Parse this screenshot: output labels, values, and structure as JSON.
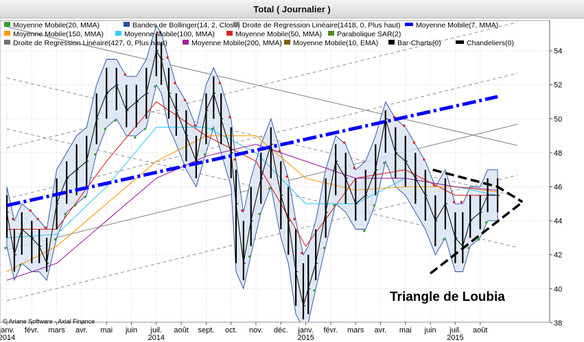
{
  "title": "Total  ( Journalier )",
  "copyright": "© Ariane Software - Axial Finance",
  "annotation": "Triangle de Loubia",
  "chart_data": {
    "type": "line",
    "title": "Total  ( Journalier )",
    "xlabel": "",
    "ylabel": "",
    "ylim": [
      37.9,
      55.8
    ],
    "y_ticks": [
      38,
      40,
      42,
      44,
      46,
      48,
      50,
      52,
      54
    ],
    "x_labels": [
      {
        "label": "janv.",
        "year": "2014",
        "m": 0
      },
      {
        "label": "févr.",
        "year": "",
        "m": 1
      },
      {
        "label": "mars",
        "year": "",
        "m": 2
      },
      {
        "label": "avr.",
        "year": "",
        "m": 3
      },
      {
        "label": "mai",
        "year": "",
        "m": 4
      },
      {
        "label": "juin",
        "year": "",
        "m": 5
      },
      {
        "label": "juil.",
        "year": "2014",
        "m": 6
      },
      {
        "label": "août",
        "year": "",
        "m": 7
      },
      {
        "label": "sept.",
        "year": "",
        "m": 8
      },
      {
        "label": "oct.",
        "year": "",
        "m": 9
      },
      {
        "label": "nov.",
        "year": "",
        "m": 10
      },
      {
        "label": "déc.",
        "year": "",
        "m": 11
      },
      {
        "label": "janv.",
        "year": "2015",
        "m": 12
      },
      {
        "label": "févr.",
        "year": "",
        "m": 13
      },
      {
        "label": "mars",
        "year": "",
        "m": 14
      },
      {
        "label": "avr.",
        "year": "",
        "m": 15
      },
      {
        "label": "mai",
        "year": "",
        "m": 16
      },
      {
        "label": "juin",
        "year": "",
        "m": 17
      },
      {
        "label": "juil.",
        "year": "2015",
        "m": 18
      },
      {
        "label": "août",
        "year": "",
        "m": 19
      }
    ],
    "legend": [
      {
        "label": "Moyenne Mobile(20, MMA)",
        "color": "#2ca02c"
      },
      {
        "label": "Bandes de Bollinger(14, 2, Close)",
        "color": "#1f4e9a"
      },
      {
        "label": "Droite de Regression Linéaire(1418, 0, Plus haut)",
        "color": "#808080"
      },
      {
        "label": "Moyenne Mobile(7, MMA)",
        "color": "#0000ff"
      },
      {
        "label": "Moyenne Mobile(150, MMA)",
        "color": "#ff9900"
      },
      {
        "label": "Moyenne Mobile(100, MMA)",
        "color": "#33ccff"
      },
      {
        "label": "Moyenne Mobile(50, MMA)",
        "color": "#e02020"
      },
      {
        "label": "Parabolique SAR(2)",
        "color": "#4d8c1f"
      },
      {
        "label": "Droite de Regression Linéaire(427, 0, Plus haut)",
        "color": "#707070"
      },
      {
        "label": "Moyenne Mobile(200, MMA)",
        "color": "#a020a0"
      },
      {
        "label": "Moyenne Mobile(10, EMA)",
        "color": "#806000"
      },
      {
        "label": "Bar-Charts(0)",
        "color": "#000000"
      },
      {
        "label": "Chandeliers(0)",
        "color": "#000000"
      }
    ],
    "price_series": {
      "name": "Total",
      "m": [
        0,
        0.3,
        0.6,
        1.0,
        1.3,
        1.6,
        2.0,
        2.4,
        2.8,
        3.2,
        3.6,
        4.0,
        4.4,
        4.8,
        5.2,
        5.6,
        6.0,
        6.2,
        6.5,
        6.8,
        7.2,
        7.6,
        8.0,
        8.3,
        8.6,
        9.0,
        9.2,
        9.5,
        9.8,
        10.2,
        10.6,
        11.0,
        11.3,
        11.6,
        11.9,
        12.1,
        12.4,
        12.8,
        13.2,
        13.6,
        14.0,
        14.4,
        14.8,
        15.2,
        15.6,
        16.0,
        16.4,
        16.8,
        17.2,
        17.6,
        18.0,
        18.3,
        18.6,
        19.0,
        19.3,
        19.7
      ],
      "close": [
        44.5,
        42.0,
        43.5,
        43.0,
        42.5,
        41.5,
        45.0,
        46.5,
        47.0,
        47.5,
        50.0,
        51.5,
        52.0,
        50.5,
        51.0,
        51.5,
        54.0,
        53.5,
        51.5,
        50.5,
        49.0,
        47.5,
        50.5,
        51.5,
        50.0,
        48.0,
        45.0,
        41.5,
        44.0,
        46.5,
        48.5,
        45.5,
        44.0,
        41.0,
        39.0,
        40.0,
        41.5,
        44.5,
        47.5,
        46.5,
        45.0,
        45.5,
        47.0,
        50.0,
        48.0,
        47.5,
        46.5,
        45.5,
        44.0,
        45.0,
        43.0,
        42.5,
        44.0,
        44.5,
        45.5,
        45.5
      ],
      "high": [
        45.5,
        43.5,
        44.5,
        44.0,
        43.5,
        43.0,
        46.5,
        47.5,
        48.5,
        49.0,
        51.5,
        53.0,
        53.0,
        52.0,
        52.0,
        53.0,
        55.0,
        54.5,
        53.0,
        51.5,
        50.5,
        49.0,
        51.5,
        52.5,
        51.5,
        49.5,
        47.0,
        44.0,
        46.0,
        48.0,
        49.5,
        47.5,
        46.0,
        43.5,
        41.5,
        42.0,
        43.5,
        46.5,
        48.5,
        48.0,
        46.5,
        47.0,
        48.5,
        50.5,
        49.5,
        49.0,
        48.0,
        47.0,
        45.5,
        46.5,
        44.5,
        44.5,
        45.5,
        45.5,
        46.5,
        46.5
      ],
      "low": [
        43.0,
        41.0,
        42.0,
        41.5,
        41.5,
        41.0,
        43.5,
        45.0,
        45.5,
        46.0,
        48.5,
        50.0,
        50.5,
        49.5,
        49.5,
        50.0,
        52.5,
        52.0,
        50.0,
        49.0,
        47.5,
        46.5,
        48.5,
        50.0,
        48.5,
        46.5,
        41.5,
        40.5,
        42.5,
        45.0,
        46.5,
        43.5,
        42.0,
        39.0,
        38.2,
        38.5,
        40.5,
        43.0,
        45.5,
        45.0,
        44.0,
        44.0,
        45.5,
        48.0,
        46.5,
        46.0,
        45.0,
        44.0,
        42.5,
        43.5,
        41.5,
        41.5,
        43.0,
        43.5,
        44.5,
        44.5
      ]
    },
    "moving_averages": [
      {
        "name": "Moyenne Mobile(50, MMA)",
        "color": "#e02020",
        "m": [
          0,
          2,
          4,
          6,
          8,
          10,
          12,
          14,
          16,
          18,
          19.7
        ],
        "values": [
          43.5,
          43.5,
          47.5,
          51.0,
          49.0,
          47.5,
          42.5,
          46.5,
          47.0,
          45.5,
          45.5
        ]
      },
      {
        "name": "Moyenne Mobile(100, MMA)",
        "color": "#33ccff",
        "m": [
          0,
          2,
          4,
          6,
          8,
          10,
          12,
          14,
          16,
          18,
          19.7
        ],
        "values": [
          43.0,
          43.2,
          46.0,
          49.5,
          49.5,
          48.0,
          45.0,
          45.0,
          46.5,
          46.0,
          45.5
        ]
      },
      {
        "name": "Moyenne Mobile(150, MMA)",
        "color": "#ff9900",
        "m": [
          0,
          2,
          4,
          6,
          8,
          10,
          12,
          14,
          16,
          18,
          19.7
        ],
        "values": [
          41.0,
          42.5,
          45.0,
          47.5,
          49.0,
          49.0,
          46.5,
          45.8,
          46.0,
          46.0,
          45.7
        ]
      },
      {
        "name": "Moyenne Mobile(200, MMA)",
        "color": "#a020a0",
        "m": [
          0,
          2,
          4,
          6,
          8,
          10,
          12,
          14,
          16,
          18,
          19.7
        ],
        "values": [
          40.5,
          41.5,
          44.0,
          46.5,
          47.8,
          48.5,
          47.5,
          46.5,
          46.5,
          46.0,
          45.8
        ]
      }
    ],
    "trend_lines": [
      {
        "name": "Moyenne Mobile(7, MMA) – tendance",
        "style": "thick-dashdot",
        "color": "#0000ff",
        "points": [
          [
            0,
            44.9
          ],
          [
            19.7,
            51.3
          ]
        ]
      },
      {
        "name": "Triangle – côté haut",
        "style": "thick-dash",
        "color": "#000000",
        "points": [
          [
            17.1,
            47.0
          ],
          [
            19.7,
            46.0
          ],
          [
            20.7,
            45.1
          ]
        ]
      },
      {
        "name": "Triangle – côté bas",
        "style": "thick-dash",
        "color": "#000000",
        "points": [
          [
            17.0,
            40.9
          ],
          [
            20.7,
            45.1
          ]
        ]
      }
    ],
    "regression_channels": [
      {
        "name": "Droite de Regression Linéaire(427, 0, Plus haut)",
        "color": "#808080",
        "slope_per_month": 0.36,
        "mid_at_0": 42.3,
        "offsets": [
          -3.0,
          0,
          3.0,
          6.0
        ]
      },
      {
        "name": "Droite de Regression Linéaire(1418, 0, Plus haut)",
        "color": "#808080",
        "slope_per_month": -0.34,
        "mid_at_0": 55.4,
        "offsets": [
          -6.0,
          -3.0,
          0
        ]
      }
    ]
  }
}
